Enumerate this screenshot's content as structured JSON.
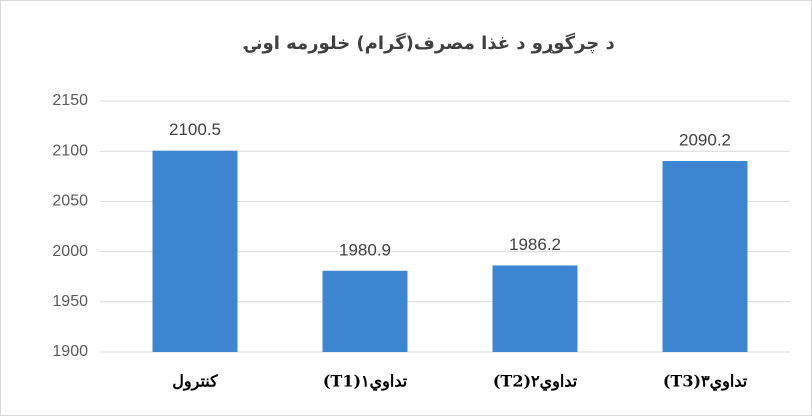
{
  "chart_data": {
    "type": "bar",
    "title": "د چرگوړو د غذا مصرف(گرام) خلورمه اونۍ",
    "categories": [
      "کنترول",
      "تداوي۱(T1)",
      "تداوي۲(T2)",
      "تداوي۳(T3)"
    ],
    "values": [
      2100.5,
      1980.9,
      1986.2,
      2090.2
    ],
    "color": "#3d85d1",
    "ylim": [
      1900,
      2150
    ],
    "yticks": [
      1900,
      1950,
      2000,
      2050,
      2100,
      2150
    ],
    "grid": true
  }
}
